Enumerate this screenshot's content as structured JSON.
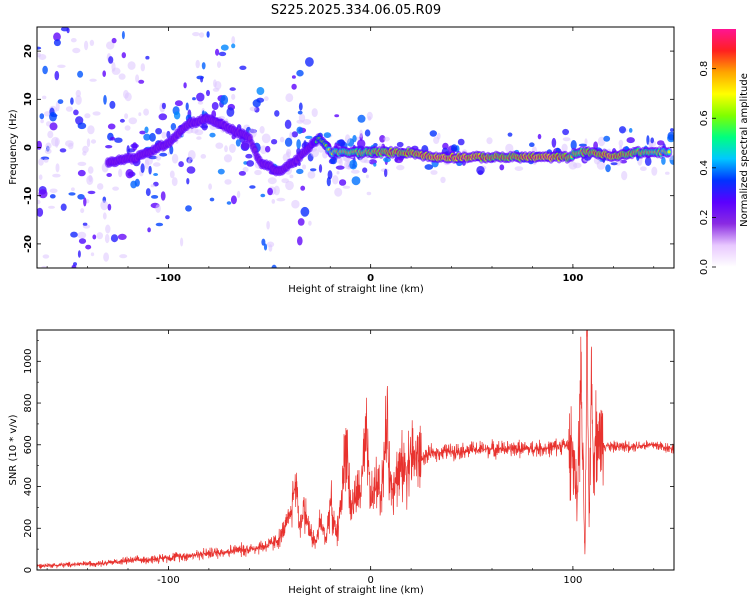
{
  "title": "S225.2025.334.06.05.R09",
  "colors": {
    "snr_line": "#e8322e",
    "frame": "#000000",
    "ridge_cold": "#6a1fe0",
    "ridge_hot": "#ff2020"
  },
  "chart_data": [
    {
      "type": "heatmap",
      "title": "S225.2025.334.06.05.R09",
      "xlabel": "Height of straight line (km)",
      "ylabel": "Frequency (Hz)",
      "xlim": [
        -165,
        150
      ],
      "ylim": [
        -25,
        25
      ],
      "xticks": [
        -100,
        0,
        100
      ],
      "yticks": [
        -20,
        -10,
        0,
        10,
        20
      ],
      "grid": false,
      "colorbar": {
        "label": "Normalized spectral amplitude",
        "range": [
          0,
          0.96
        ],
        "ticks": [
          "0.0",
          "0.2",
          "0.4",
          "0.6",
          "0.8"
        ],
        "colors": [
          "#ffffff",
          "#e8c8ff",
          "#8a2be2",
          "#5a00ff",
          "#0033ff",
          "#00c8ff",
          "#00ff80",
          "#7fff00",
          "#ffff00",
          "#ffa500",
          "#ff2020",
          "#ff1493"
        ]
      },
      "ridge": {
        "x": [
          -150,
          -130,
          -115,
          -100,
          -90,
          -80,
          -70,
          -60,
          -55,
          -45,
          -35,
          -28,
          -25,
          -20,
          -10,
          0,
          10,
          20,
          30,
          40,
          50,
          60,
          70,
          80,
          90,
          98,
          102,
          110,
          120,
          130,
          140,
          148
        ],
        "frequency_hz": [
          -4,
          -3,
          -2,
          1,
          5,
          6,
          4,
          2,
          -3,
          -5,
          -2,
          1,
          2,
          -1,
          -1,
          -1,
          -1,
          -1,
          -2,
          -2,
          -2,
          -2,
          -2,
          -2,
          -2,
          -2,
          -1,
          -1,
          -2,
          -1,
          -1,
          -1
        ],
        "amplitude": [
          0.1,
          0.15,
          0.2,
          0.25,
          0.3,
          0.3,
          0.25,
          0.2,
          0.2,
          0.25,
          0.3,
          0.5,
          0.6,
          0.7,
          0.75,
          0.8,
          0.85,
          0.85,
          0.9,
          0.9,
          0.9,
          0.85,
          0.85,
          0.9,
          0.9,
          0.8,
          0.75,
          0.85,
          0.9,
          0.8,
          0.75,
          0.7
        ]
      }
    },
    {
      "type": "line",
      "xlabel": "Height of straight line (km)",
      "ylabel": "SNR (10 * v/v)",
      "xlim": [
        -165,
        150
      ],
      "ylim": [
        0,
        1150
      ],
      "xticks": [
        -100,
        0,
        100
      ],
      "yticks": [
        0,
        200,
        400,
        600,
        800,
        1000
      ],
      "grid": false,
      "series": [
        {
          "x": [
            -165,
            -150,
            -140,
            -130,
            -120,
            -110,
            -100,
            -90,
            -80,
            -70,
            -60,
            -50,
            -45,
            -40,
            -37,
            -35,
            -33,
            -30,
            -27,
            -25,
            -22,
            -20,
            -17,
            -15,
            -12,
            -10,
            -7,
            -5,
            -2,
            0,
            3,
            5,
            8,
            10,
            12,
            15,
            18,
            20,
            25,
            30,
            40,
            50,
            60,
            70,
            80,
            90,
            95,
            100,
            102,
            104,
            106,
            107,
            108,
            109,
            110,
            112,
            115,
            120,
            130,
            140,
            150
          ],
          "values": [
            20,
            25,
            30,
            35,
            45,
            50,
            60,
            70,
            80,
            90,
            100,
            120,
            150,
            250,
            430,
            200,
            300,
            180,
            130,
            230,
            150,
            330,
            160,
            280,
            640,
            300,
            350,
            380,
            620,
            330,
            420,
            360,
            680,
            380,
            450,
            480,
            500,
            550,
            530,
            560,
            570,
            575,
            580,
            580,
            580,
            585,
            600,
            590,
            300,
            900,
            50,
            1150,
            220,
            900,
            580,
            650,
            600,
            590,
            595,
            600,
            580
          ]
        }
      ]
    }
  ]
}
